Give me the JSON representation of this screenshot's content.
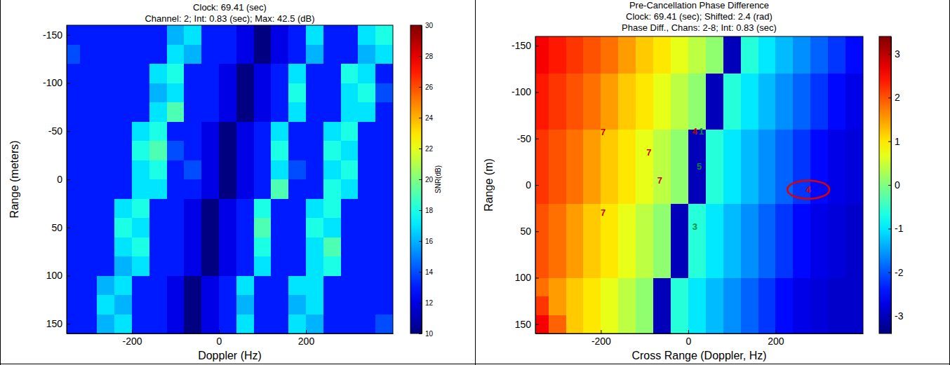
{
  "chart_data": [
    {
      "type": "heatmap",
      "title": "Clock: 69.41 (sec)",
      "subtitle": [
        "Channel: 2; Int: 0.83 (sec); Max: 42.5 (dB)"
      ],
      "x_label": "Doppler (Hz)",
      "y_label": "Range (meters)",
      "x": [
        -340,
        -300,
        -260,
        -220,
        -180,
        -140,
        -100,
        -60,
        -20,
        20,
        60,
        100,
        140,
        180,
        220,
        260,
        300,
        340,
        380
      ],
      "y": [
        -150,
        -130,
        -110,
        -90,
        -70,
        -50,
        -30,
        -10,
        10,
        30,
        50,
        70,
        90,
        110,
        130,
        150
      ],
      "values": [
        [
          13,
          13,
          13,
          13,
          13,
          13,
          16,
          17,
          13,
          13,
          12,
          10,
          12,
          13,
          17,
          13,
          13,
          17,
          18
        ],
        [
          14,
          13,
          13,
          13,
          13,
          13,
          17,
          16,
          13,
          13,
          12,
          10,
          12,
          13,
          16,
          13,
          13,
          16,
          17
        ],
        [
          13,
          13,
          13,
          13,
          13,
          17,
          18,
          13,
          13,
          12,
          10,
          12,
          13,
          17,
          13,
          13,
          18,
          17,
          13
        ],
        [
          13,
          13,
          13,
          13,
          13,
          16,
          17,
          13,
          13,
          12,
          10,
          12,
          13,
          18,
          13,
          13,
          17,
          18,
          14
        ],
        [
          13,
          13,
          13,
          13,
          13,
          17,
          19,
          13,
          13,
          12,
          10,
          12,
          13,
          17,
          13,
          13,
          17,
          17,
          13
        ],
        [
          13,
          13,
          13,
          13,
          17,
          18,
          13,
          13,
          12,
          10,
          12,
          13,
          17,
          13,
          13,
          17,
          18,
          13,
          13
        ],
        [
          13,
          13,
          13,
          13,
          18,
          19,
          14,
          13,
          12,
          10,
          12,
          13,
          18,
          13,
          13,
          18,
          17,
          13,
          13
        ],
        [
          13,
          13,
          13,
          13,
          17,
          18,
          13,
          14,
          12,
          10,
          12,
          13,
          17,
          14,
          13,
          17,
          18,
          13,
          13
        ],
        [
          13,
          13,
          13,
          13,
          17,
          17,
          13,
          13,
          12,
          10,
          12,
          13,
          19,
          13,
          13,
          18,
          17,
          13,
          13
        ],
        [
          13,
          13,
          13,
          17,
          18,
          13,
          13,
          12,
          10,
          12,
          13,
          18,
          13,
          13,
          17,
          18,
          13,
          13,
          13
        ],
        [
          13,
          13,
          13,
          18,
          17,
          13,
          13,
          12,
          10,
          12,
          13,
          19,
          13,
          13,
          18,
          17,
          13,
          13,
          13
        ],
        [
          13,
          13,
          13,
          17,
          18,
          13,
          13,
          12,
          10,
          12,
          13,
          18,
          13,
          13,
          17,
          19,
          13,
          13,
          13
        ],
        [
          13,
          13,
          13,
          16,
          17,
          13,
          13,
          12,
          10,
          12,
          13,
          17,
          13,
          13,
          17,
          18,
          13,
          13,
          13
        ],
        [
          13,
          13,
          16,
          17,
          13,
          13,
          12,
          10,
          12,
          13,
          17,
          13,
          13,
          17,
          17,
          13,
          13,
          13,
          13
        ],
        [
          13,
          13,
          17,
          16,
          13,
          13,
          12,
          10,
          12,
          13,
          16,
          13,
          13,
          16,
          17,
          13,
          13,
          13,
          13
        ],
        [
          13,
          13,
          16,
          17,
          13,
          13,
          12,
          10,
          12,
          13,
          17,
          13,
          13,
          17,
          16,
          13,
          13,
          13,
          14
        ]
      ],
      "xlim": [
        -350,
        400
      ],
      "ylim": [
        -160,
        160
      ],
      "xticks": [
        -200,
        0,
        200
      ],
      "yticks": [
        -150,
        -100,
        -50,
        0,
        50,
        100,
        150
      ],
      "color": "jet",
      "colorbar": {
        "label": "SNR(dB)",
        "range": [
          10,
          30
        ],
        "ticks": [
          10,
          12,
          14,
          16,
          18,
          20,
          22,
          24,
          26,
          28,
          30
        ]
      }
    },
    {
      "type": "heatmap",
      "title": "Pre-Cancellation Phase Difference",
      "subtitle": [
        "Clock: 69.41 (sec); Shifted: 2.4 (rad)",
        "Phase Diff., Chans: 2-8; Int: 0.83 (sec)"
      ],
      "x_label": "Cross Range (Doppler, Hz)",
      "y_label": "Range (m)",
      "x": [
        -340,
        -300,
        -260,
        -220,
        -180,
        -140,
        -100,
        -60,
        -20,
        20,
        60,
        100,
        140,
        180,
        220,
        260,
        300,
        340,
        380
      ],
      "y": [
        -150,
        -130,
        -110,
        -90,
        -70,
        -50,
        -30,
        -10,
        10,
        30,
        50,
        70,
        90,
        110,
        130,
        150
      ],
      "values": [
        [
          2.6,
          2.4,
          2.2,
          2.0,
          1.8,
          1.5,
          1.2,
          1.0,
          0.7,
          0.4,
          0.1,
          -3.0,
          -0.6,
          -1.0,
          -1.3,
          -1.6,
          -1.9,
          -2.2,
          -2.5
        ],
        [
          2.6,
          2.4,
          2.2,
          2.0,
          1.8,
          1.5,
          1.2,
          1.0,
          0.7,
          0.4,
          0.1,
          -3.0,
          -0.6,
          -1.0,
          -1.3,
          -1.6,
          -1.9,
          -2.2,
          -2.5
        ],
        [
          2.4,
          2.2,
          2.0,
          1.8,
          1.5,
          1.2,
          1.0,
          0.7,
          0.4,
          0.1,
          -3.0,
          -0.6,
          -1.0,
          -1.3,
          -1.6,
          -1.9,
          -2.2,
          -2.5,
          -2.7
        ],
        [
          2.4,
          2.2,
          2.0,
          1.8,
          1.5,
          1.2,
          1.0,
          0.7,
          0.4,
          0.1,
          -3.0,
          -0.6,
          -1.0,
          -1.3,
          -1.6,
          -1.9,
          -2.2,
          -2.5,
          -2.7
        ],
        [
          2.4,
          2.2,
          2.0,
          1.8,
          1.5,
          1.2,
          1.0,
          0.7,
          0.4,
          0.1,
          -3.0,
          -0.6,
          -1.0,
          -1.3,
          -1.6,
          -1.9,
          -2.2,
          -2.5,
          -2.7
        ],
        [
          2.2,
          2.0,
          1.8,
          1.5,
          1.2,
          1.0,
          0.7,
          0.4,
          0.1,
          -3.0,
          -0.6,
          -1.0,
          -1.3,
          -1.6,
          -1.9,
          -2.2,
          -2.5,
          -2.7,
          -2.8
        ],
        [
          2.2,
          2.0,
          1.8,
          1.5,
          1.2,
          1.0,
          0.7,
          0.4,
          0.1,
          -3.0,
          -0.6,
          -1.0,
          -1.3,
          -1.6,
          -1.9,
          -2.2,
          -2.5,
          -2.7,
          -2.8
        ],
        [
          2.2,
          2.0,
          1.8,
          1.5,
          1.2,
          1.0,
          0.7,
          0.4,
          0.1,
          -3.0,
          -0.6,
          -1.0,
          -1.3,
          -1.6,
          -1.9,
          -2.2,
          -2.5,
          -2.7,
          -2.8
        ],
        [
          2.2,
          2.0,
          1.8,
          1.5,
          1.2,
          1.0,
          0.7,
          0.4,
          0.1,
          -3.0,
          -0.6,
          -1.0,
          -1.3,
          -1.6,
          -1.9,
          -2.2,
          -2.5,
          -2.7,
          -2.8
        ],
        [
          2.0,
          1.8,
          1.5,
          1.2,
          1.0,
          0.7,
          0.4,
          0.1,
          -3.0,
          -0.6,
          -1.0,
          -1.3,
          -1.6,
          -1.9,
          -2.2,
          -2.5,
          -2.7,
          -2.8,
          -2.9
        ],
        [
          2.0,
          1.8,
          1.5,
          1.2,
          1.0,
          0.7,
          0.4,
          0.1,
          -3.0,
          -0.6,
          -1.0,
          -1.3,
          -1.6,
          -1.9,
          -2.2,
          -2.5,
          -2.7,
          -2.8,
          -2.9
        ],
        [
          2.0,
          1.8,
          1.5,
          1.2,
          1.0,
          0.7,
          0.4,
          0.1,
          -3.0,
          -0.6,
          -1.0,
          -1.3,
          -1.6,
          -1.9,
          -2.2,
          -2.5,
          -2.7,
          -2.8,
          -2.9
        ],
        [
          2.0,
          1.8,
          1.5,
          1.2,
          1.0,
          0.7,
          0.4,
          0.1,
          -3.0,
          -0.6,
          -1.0,
          -1.3,
          -1.6,
          -1.9,
          -2.2,
          -2.5,
          -2.7,
          -2.8,
          -2.9
        ],
        [
          1.8,
          1.5,
          1.2,
          1.0,
          0.7,
          0.4,
          0.1,
          -3.0,
          -0.6,
          -1.0,
          -1.3,
          -1.6,
          -1.9,
          -2.2,
          -2.5,
          -2.7,
          -2.8,
          -2.9,
          -2.9
        ],
        [
          2.2,
          1.5,
          1.2,
          1.0,
          0.7,
          0.4,
          0.1,
          -3.0,
          -0.6,
          -1.0,
          -1.3,
          -1.6,
          -1.9,
          -2.2,
          -2.5,
          -2.7,
          -2.8,
          -2.9,
          -2.9
        ],
        [
          2.6,
          1.9,
          1.2,
          1.0,
          0.7,
          0.4,
          0.1,
          -3.0,
          -0.6,
          -1.0,
          -1.3,
          -1.6,
          -1.9,
          -2.2,
          -2.5,
          -2.7,
          -2.8,
          -2.9,
          -2.9
        ]
      ],
      "xlim": [
        -350,
        400
      ],
      "ylim": [
        -160,
        160
      ],
      "xticks": [
        -200,
        0,
        200
      ],
      "yticks": [
        -150,
        -100,
        -50,
        0,
        50,
        100,
        150
      ],
      "color": "jet",
      "colorbar": {
        "range": [
          -3.4,
          3.4
        ],
        "ticks": [
          -3,
          -2,
          -1,
          0,
          1,
          2,
          3
        ]
      },
      "annotations": [
        {
          "text": "7",
          "x": -195,
          "y": -57,
          "color": "#cc0000"
        },
        {
          "text": "7",
          "x": -90,
          "y": -35,
          "color": "#cc0000"
        },
        {
          "text": "7",
          "x": -65,
          "y": -5,
          "color": "#cc0000"
        },
        {
          "text": "7",
          "x": -195,
          "y": 30,
          "color": "#cc0000"
        },
        {
          "text": "4",
          "x": 15,
          "y": -58,
          "color": "#cc0000"
        },
        {
          "text": "1",
          "x": 30,
          "y": -58,
          "color": "#008a3e"
        },
        {
          "text": "5",
          "x": 25,
          "y": -20,
          "color": "#008a3e"
        },
        {
          "text": "3",
          "x": 15,
          "y": 45,
          "color": "#008a3e"
        },
        {
          "text": "4",
          "x": 275,
          "y": 5,
          "color": "#e00000",
          "marker": "ellipse"
        }
      ]
    }
  ]
}
